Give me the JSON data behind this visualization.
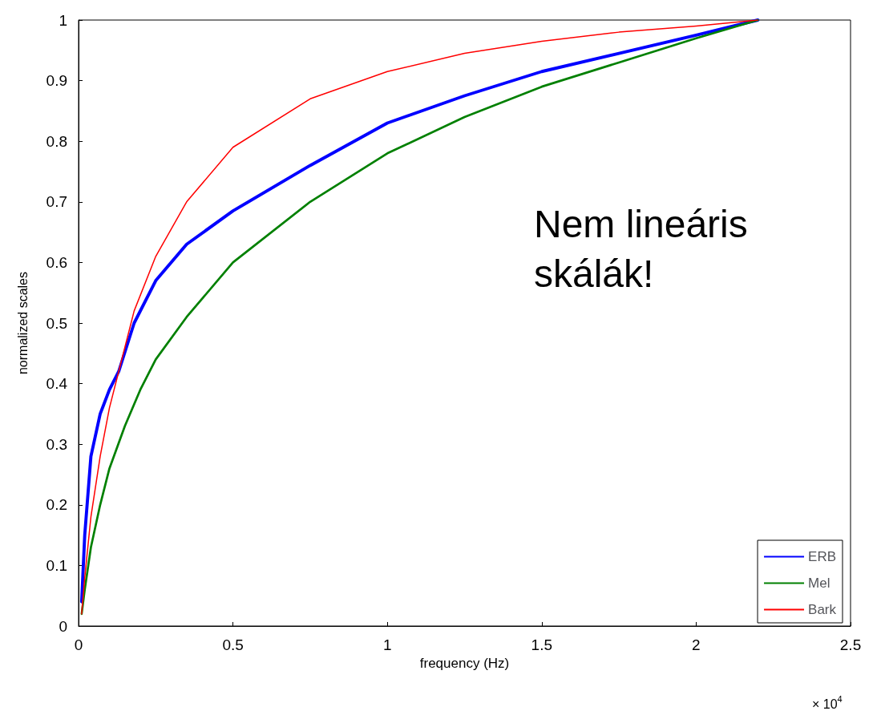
{
  "chart_data": {
    "type": "line",
    "xlabel": "frequency (Hz)",
    "ylabel": "normalized scales",
    "xlim": [
      0,
      2.5
    ],
    "ylim": [
      0,
      1
    ],
    "xticks": [
      0,
      0.5,
      1,
      1.5,
      2,
      2.5
    ],
    "yticks": [
      0,
      0.1,
      0.2,
      0.3,
      0.4,
      0.5,
      0.6,
      0.7,
      0.8,
      0.9,
      1
    ],
    "annotations": [
      "Nem lineáris\nskálák!",
      "× 10$^{4}$"
    ],
    "legend": "bottom right",
    "grid": false,
    "marker": "none",
    "line_style": "solid",
    "series": [
      {
        "name": "ERB",
        "color": "#0000ff",
        "x": [
          0.01,
          0.02,
          0.04,
          0.07,
          0.1,
          0.13,
          0.18,
          0.25,
          0.35,
          0.5,
          0.75,
          1,
          1.25,
          1.5,
          1.75,
          2,
          2.2
        ],
        "values": [
          0.04,
          0.15,
          0.28,
          0.35,
          0.39,
          0.42,
          0.5,
          0.57,
          0.63,
          0.685,
          0.76,
          0.83,
          0.875,
          0.915,
          0.945,
          0.975,
          1
        ]
      },
      {
        "name": "Mel",
        "color": "#008000",
        "x": [
          0.01,
          0.02,
          0.04,
          0.07,
          0.1,
          0.15,
          0.2,
          0.25,
          0.35,
          0.5,
          0.75,
          1,
          1.25,
          1.5,
          1.75,
          2,
          2.2
        ],
        "values": [
          0.02,
          0.06,
          0.13,
          0.2,
          0.26,
          0.33,
          0.39,
          0.44,
          0.51,
          0.6,
          0.7,
          0.78,
          0.84,
          0.89,
          0.93,
          0.97,
          1
        ]
      },
      {
        "name": "Bark",
        "color": "#ff0000",
        "x": [
          0.01,
          0.02,
          0.04,
          0.07,
          0.1,
          0.13,
          0.18,
          0.25,
          0.35,
          0.5,
          0.75,
          1,
          1.25,
          1.5,
          1.75,
          2,
          2.2
        ],
        "values": [
          0.02,
          0.08,
          0.18,
          0.28,
          0.36,
          0.42,
          0.52,
          0.61,
          0.7,
          0.79,
          0.87,
          0.915,
          0.945,
          0.965,
          0.98,
          0.99,
          1
        ]
      }
    ]
  }
}
